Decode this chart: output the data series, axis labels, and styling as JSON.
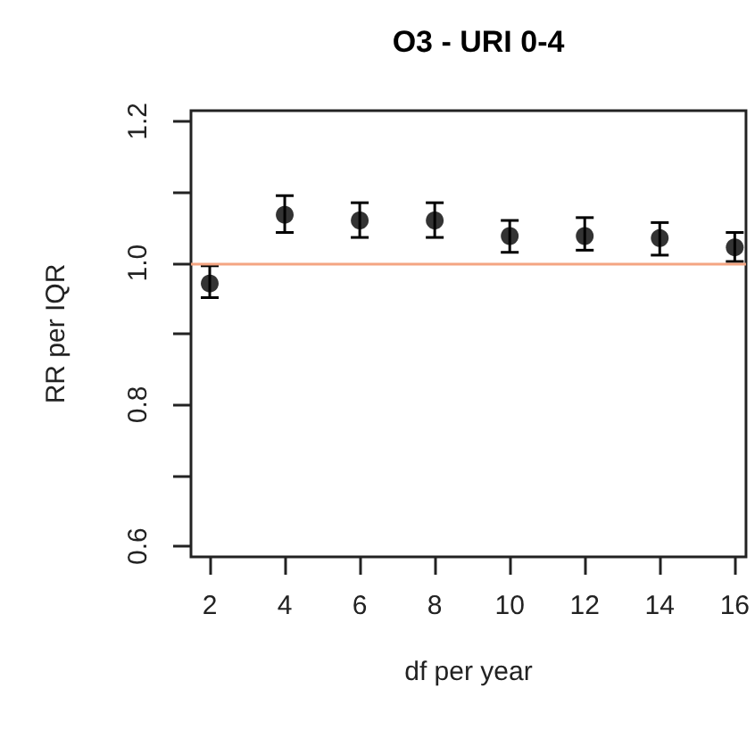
{
  "chart_data": {
    "type": "scatter",
    "title": "O3 - URI 0-4",
    "xlabel": "df per year",
    "ylabel": "RR per IQR",
    "x": [
      2,
      4,
      6,
      8,
      10,
      12,
      14,
      16
    ],
    "series": [
      {
        "color": "#000000",
        "values": [
          0.971,
          1.068,
          1.06,
          1.06,
          1.038,
          1.038,
          1.035,
          1.022
        ],
        "errors": [
          [
            0.951,
            0.996
          ],
          [
            1.043,
            1.095
          ],
          [
            1.036,
            1.085
          ],
          [
            1.036,
            1.085
          ],
          [
            1.015,
            1.06
          ],
          [
            1.018,
            1.064
          ],
          [
            1.011,
            1.057
          ],
          [
            1.002,
            1.043
          ]
        ]
      }
    ],
    "xlim": [
      1.5,
      16.3
    ],
    "xticks": [
      2,
      4,
      6,
      8,
      10,
      12,
      14,
      16
    ],
    "ylim": [
      0.585,
      1.215
    ],
    "yticks": [
      0.6,
      {
        "value": 0.7,
        "label": null
      },
      0.8,
      {
        "value": 0.9,
        "label": null
      },
      {
        "value": 1.0,
        "label": "1.0"
      },
      {
        "value": 1.1,
        "label": null
      },
      1.2
    ],
    "ref_lines": [
      {
        "axis": "y",
        "value": 1.0,
        "color": "#f4a582"
      }
    ],
    "grid": false,
    "marker": "circle"
  }
}
